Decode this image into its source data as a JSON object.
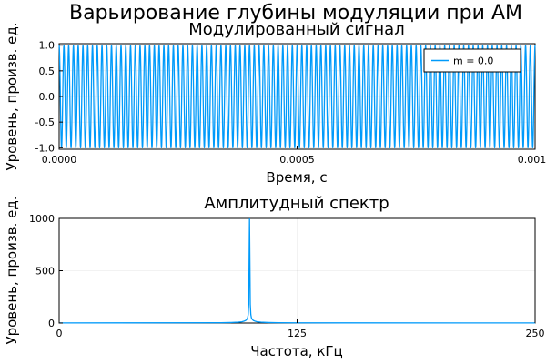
{
  "figure_title": "Варьирование глубины модуляции при АМ",
  "chart_data": [
    {
      "type": "line",
      "title": "Модулированный сигнал",
      "xlabel": "Время, с",
      "ylabel": "Уровень, произв. ед.",
      "xlim": [
        0,
        0.001
      ],
      "ylim": [
        -1.03,
        1.03
      ],
      "x_ticks": [
        "0.0000",
        "0.0005",
        "0.0010"
      ],
      "x_tick_values": [
        0,
        0.0005,
        0.001
      ],
      "y_ticks": [
        "-1.0",
        "-0.5",
        "0.0",
        "0.5",
        "1.0"
      ],
      "y_tick_values": [
        -1,
        -0.5,
        0,
        0.5,
        1
      ],
      "grid": true,
      "legend_position": "top-right",
      "series": [
        {
          "name": "m = 0.0",
          "color": "#009AFA",
          "function": "cos",
          "amplitude": 1.0,
          "carrier_frequency_hz": 100000
        }
      ]
    },
    {
      "type": "line",
      "title": "Амплитудный спектр",
      "xlabel": "Частота, кГц",
      "ylabel": "Уровень, произв. ед.",
      "xlim": [
        0,
        250
      ],
      "ylim": [
        0,
        1000
      ],
      "x_ticks": [
        "0",
        "125",
        "250"
      ],
      "x_tick_values": [
        0,
        125,
        250
      ],
      "y_ticks": [
        "0",
        "500",
        "1000"
      ],
      "y_tick_values": [
        0,
        500,
        1000
      ],
      "grid": true,
      "series": [
        {
          "color": "#009AFA",
          "x": [
            0,
            85,
            90,
            94,
            96,
            97,
            98,
            98.5,
            99,
            99.3,
            99.6,
            100,
            100.4,
            100.7,
            101,
            101.5,
            102,
            103,
            104,
            106,
            110,
            115,
            125,
            250
          ],
          "values": [
            1,
            3,
            5,
            8,
            12,
            17,
            25,
            33,
            50,
            80,
            180,
            995,
            180,
            80,
            50,
            33,
            25,
            17,
            12,
            8,
            5,
            3,
            2,
            1
          ]
        }
      ]
    }
  ]
}
